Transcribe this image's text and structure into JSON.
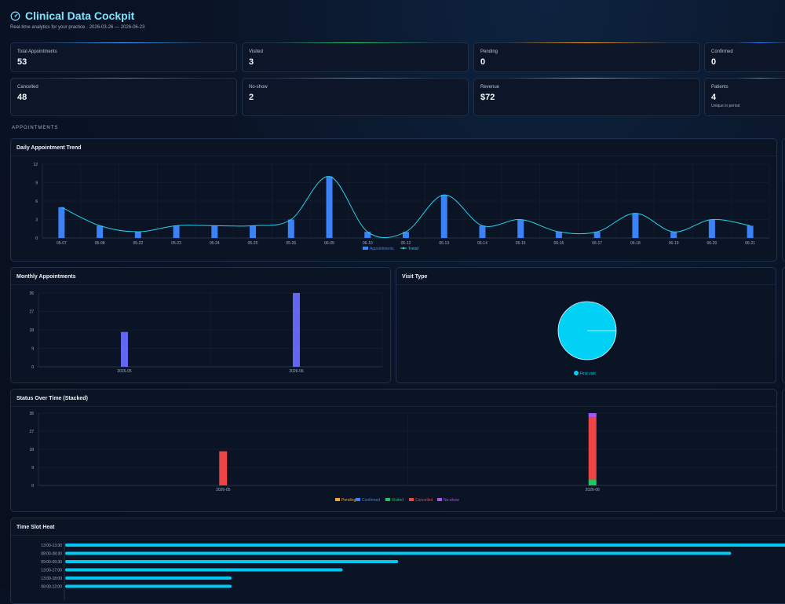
{
  "header": {
    "title": "Clinical Data Cockpit",
    "subtitle": "Real-time analytics for your practice · 2026-03-26 — 2026-06-23"
  },
  "kpis": [
    {
      "label": "Total Appointments",
      "value": "53",
      "accent": "#3fa9ff"
    },
    {
      "label": "Visited",
      "value": "3",
      "accent": "#2ecc71"
    },
    {
      "label": "Pending",
      "value": "0",
      "accent": "#f5a623"
    },
    {
      "label": "Confirmed",
      "value": "0",
      "accent": "#3b82f6"
    },
    {
      "label": "Cancelled",
      "value": "48",
      "accent": "#ef4444"
    },
    {
      "label": "No-show",
      "value": "2",
      "accent": "#a855f7"
    },
    {
      "label": "Revenue",
      "value": "$72",
      "accent": "#22d3ee"
    },
    {
      "label": "Patients",
      "value": "4",
      "note": "Unique in period",
      "accent": "#14b8a6"
    }
  ],
  "section_label": "APPOINTMENTS",
  "cards": {
    "daily": "Daily Appointment Trend",
    "monthly": "Monthly Appointments",
    "visit": "Visit Type",
    "status": "Status Over Time (Stacked)",
    "heat": "Time Slot Heat"
  },
  "chart_data": [
    {
      "type": "bar",
      "title": "Daily Appointment Trend",
      "categories": [
        "05-07",
        "05-08",
        "05-22",
        "05-23",
        "05-24",
        "05-25",
        "05-26",
        "06-05",
        "06-10",
        "06-12",
        "06-13",
        "06-14",
        "06-15",
        "06-16",
        "06-17",
        "06-18",
        "06-19",
        "06-20",
        "06-21"
      ],
      "series": [
        {
          "name": "Appointments",
          "type": "bar",
          "color": "#3b82f6",
          "values": [
            5,
            2,
            1,
            2,
            2,
            2,
            3,
            10,
            1,
            1,
            7,
            2,
            3,
            1,
            1,
            4,
            1,
            3,
            2
          ]
        },
        {
          "name": "Trend",
          "type": "line",
          "color": "#22d3ee",
          "values": [
            5,
            2,
            1,
            2,
            2,
            2,
            3,
            10,
            1,
            1,
            7,
            2,
            3,
            1,
            1,
            4,
            1,
            3,
            2
          ]
        }
      ],
      "ylim": [
        0,
        12
      ],
      "yticks": [
        0,
        3,
        6,
        9,
        12
      ],
      "legend": "bottom"
    },
    {
      "type": "bar",
      "title": "Monthly Appointments",
      "categories": [
        "2026-05",
        "2026-06"
      ],
      "values": [
        17,
        36
      ],
      "color": "#6366f1",
      "ylim": [
        0,
        36
      ],
      "yticks": [
        0,
        9,
        18,
        27,
        36
      ]
    },
    {
      "type": "pie",
      "title": "Visit Type",
      "labels": [
        "First visit"
      ],
      "values": [
        100
      ],
      "colors": [
        "#00d1f5"
      ],
      "legend": "bottom"
    },
    {
      "type": "bar",
      "title": "Status Over Time (Stacked)",
      "stacked": true,
      "categories": [
        "2026-05",
        "2026-06"
      ],
      "series": [
        {
          "name": "Pending",
          "color": "#f5a623",
          "values": [
            0,
            0
          ]
        },
        {
          "name": "Confirmed",
          "color": "#3b82f6",
          "values": [
            0,
            0
          ]
        },
        {
          "name": "Visited",
          "color": "#22c55e",
          "values": [
            0,
            3
          ]
        },
        {
          "name": "Cancelled",
          "color": "#ef4444",
          "values": [
            17,
            31
          ]
        },
        {
          "name": "No-show",
          "color": "#a855f7",
          "values": [
            0,
            2
          ]
        }
      ],
      "ylim": [
        0,
        36
      ],
      "yticks": [
        0,
        9,
        18,
        27,
        36
      ],
      "legend": "bottom"
    },
    {
      "type": "bar",
      "orientation": "horizontal",
      "title": "Time Slot Heat",
      "categories": [
        "13:00-13:30",
        "08:00-08:30",
        "09:00-09:30",
        "13:00-17:00",
        "13:00-18:00",
        "08:00-12:00"
      ],
      "values": [
        13,
        12,
        6,
        5,
        3,
        3
      ],
      "xlim": [
        0,
        13
      ],
      "color": "#00c8f0"
    }
  ]
}
